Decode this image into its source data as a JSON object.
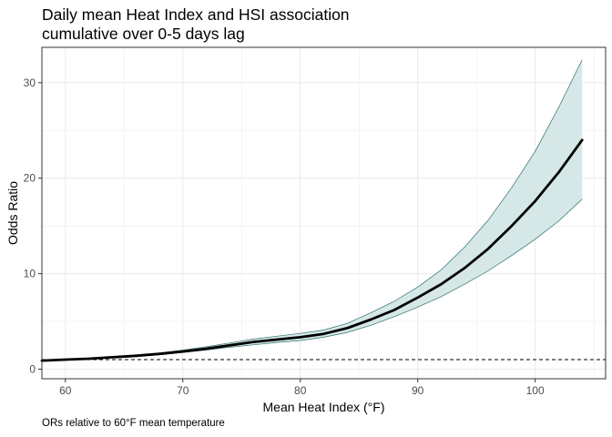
{
  "chart_data": {
    "type": "line",
    "title_lines": [
      "Daily mean Heat Index and HSI association",
      "cumulative over 0-5 days lag"
    ],
    "xlabel": "Mean Heat Index (°F)",
    "ylabel": "Odds Ratio",
    "caption": "ORs relative to 60°F mean temperature",
    "xlim": [
      58,
      106
    ],
    "ylim": [
      -1,
      33.7
    ],
    "x_ticks": [
      60,
      70,
      80,
      90,
      100
    ],
    "y_ticks": [
      0,
      10,
      20,
      30
    ],
    "grid": true,
    "reference_line": {
      "y": 1,
      "style": "dashed"
    },
    "colors": {
      "line": "#000000",
      "band_fill": "#d5e8e7",
      "band_stroke": "#2e6f6a",
      "grid": "#ebebeb",
      "panel_border": "#333333",
      "reference": "#000000"
    },
    "series": [
      {
        "x": [
          58,
          60,
          62,
          64,
          66,
          68,
          70,
          72,
          74,
          76,
          78,
          80,
          82,
          84,
          86,
          88,
          90,
          92,
          94,
          96,
          98,
          100,
          102,
          104
        ],
        "y": [
          0.9,
          1.0,
          1.1,
          1.25,
          1.4,
          1.6,
          1.85,
          2.15,
          2.5,
          2.85,
          3.1,
          3.35,
          3.7,
          4.3,
          5.2,
          6.2,
          7.5,
          8.9,
          10.6,
          12.6,
          15.0,
          17.6,
          20.6,
          24.0
        ],
        "lower": [
          0.85,
          1.0,
          1.05,
          1.2,
          1.35,
          1.5,
          1.75,
          2.0,
          2.3,
          2.55,
          2.8,
          3.0,
          3.35,
          3.85,
          4.6,
          5.5,
          6.5,
          7.6,
          8.9,
          10.3,
          11.9,
          13.6,
          15.5,
          17.8
        ],
        "upper": [
          0.95,
          1.0,
          1.15,
          1.3,
          1.45,
          1.7,
          2.0,
          2.35,
          2.75,
          3.15,
          3.45,
          3.75,
          4.1,
          4.8,
          5.9,
          7.1,
          8.6,
          10.4,
          12.8,
          15.6,
          19.0,
          22.8,
          27.4,
          32.4
        ]
      }
    ]
  }
}
